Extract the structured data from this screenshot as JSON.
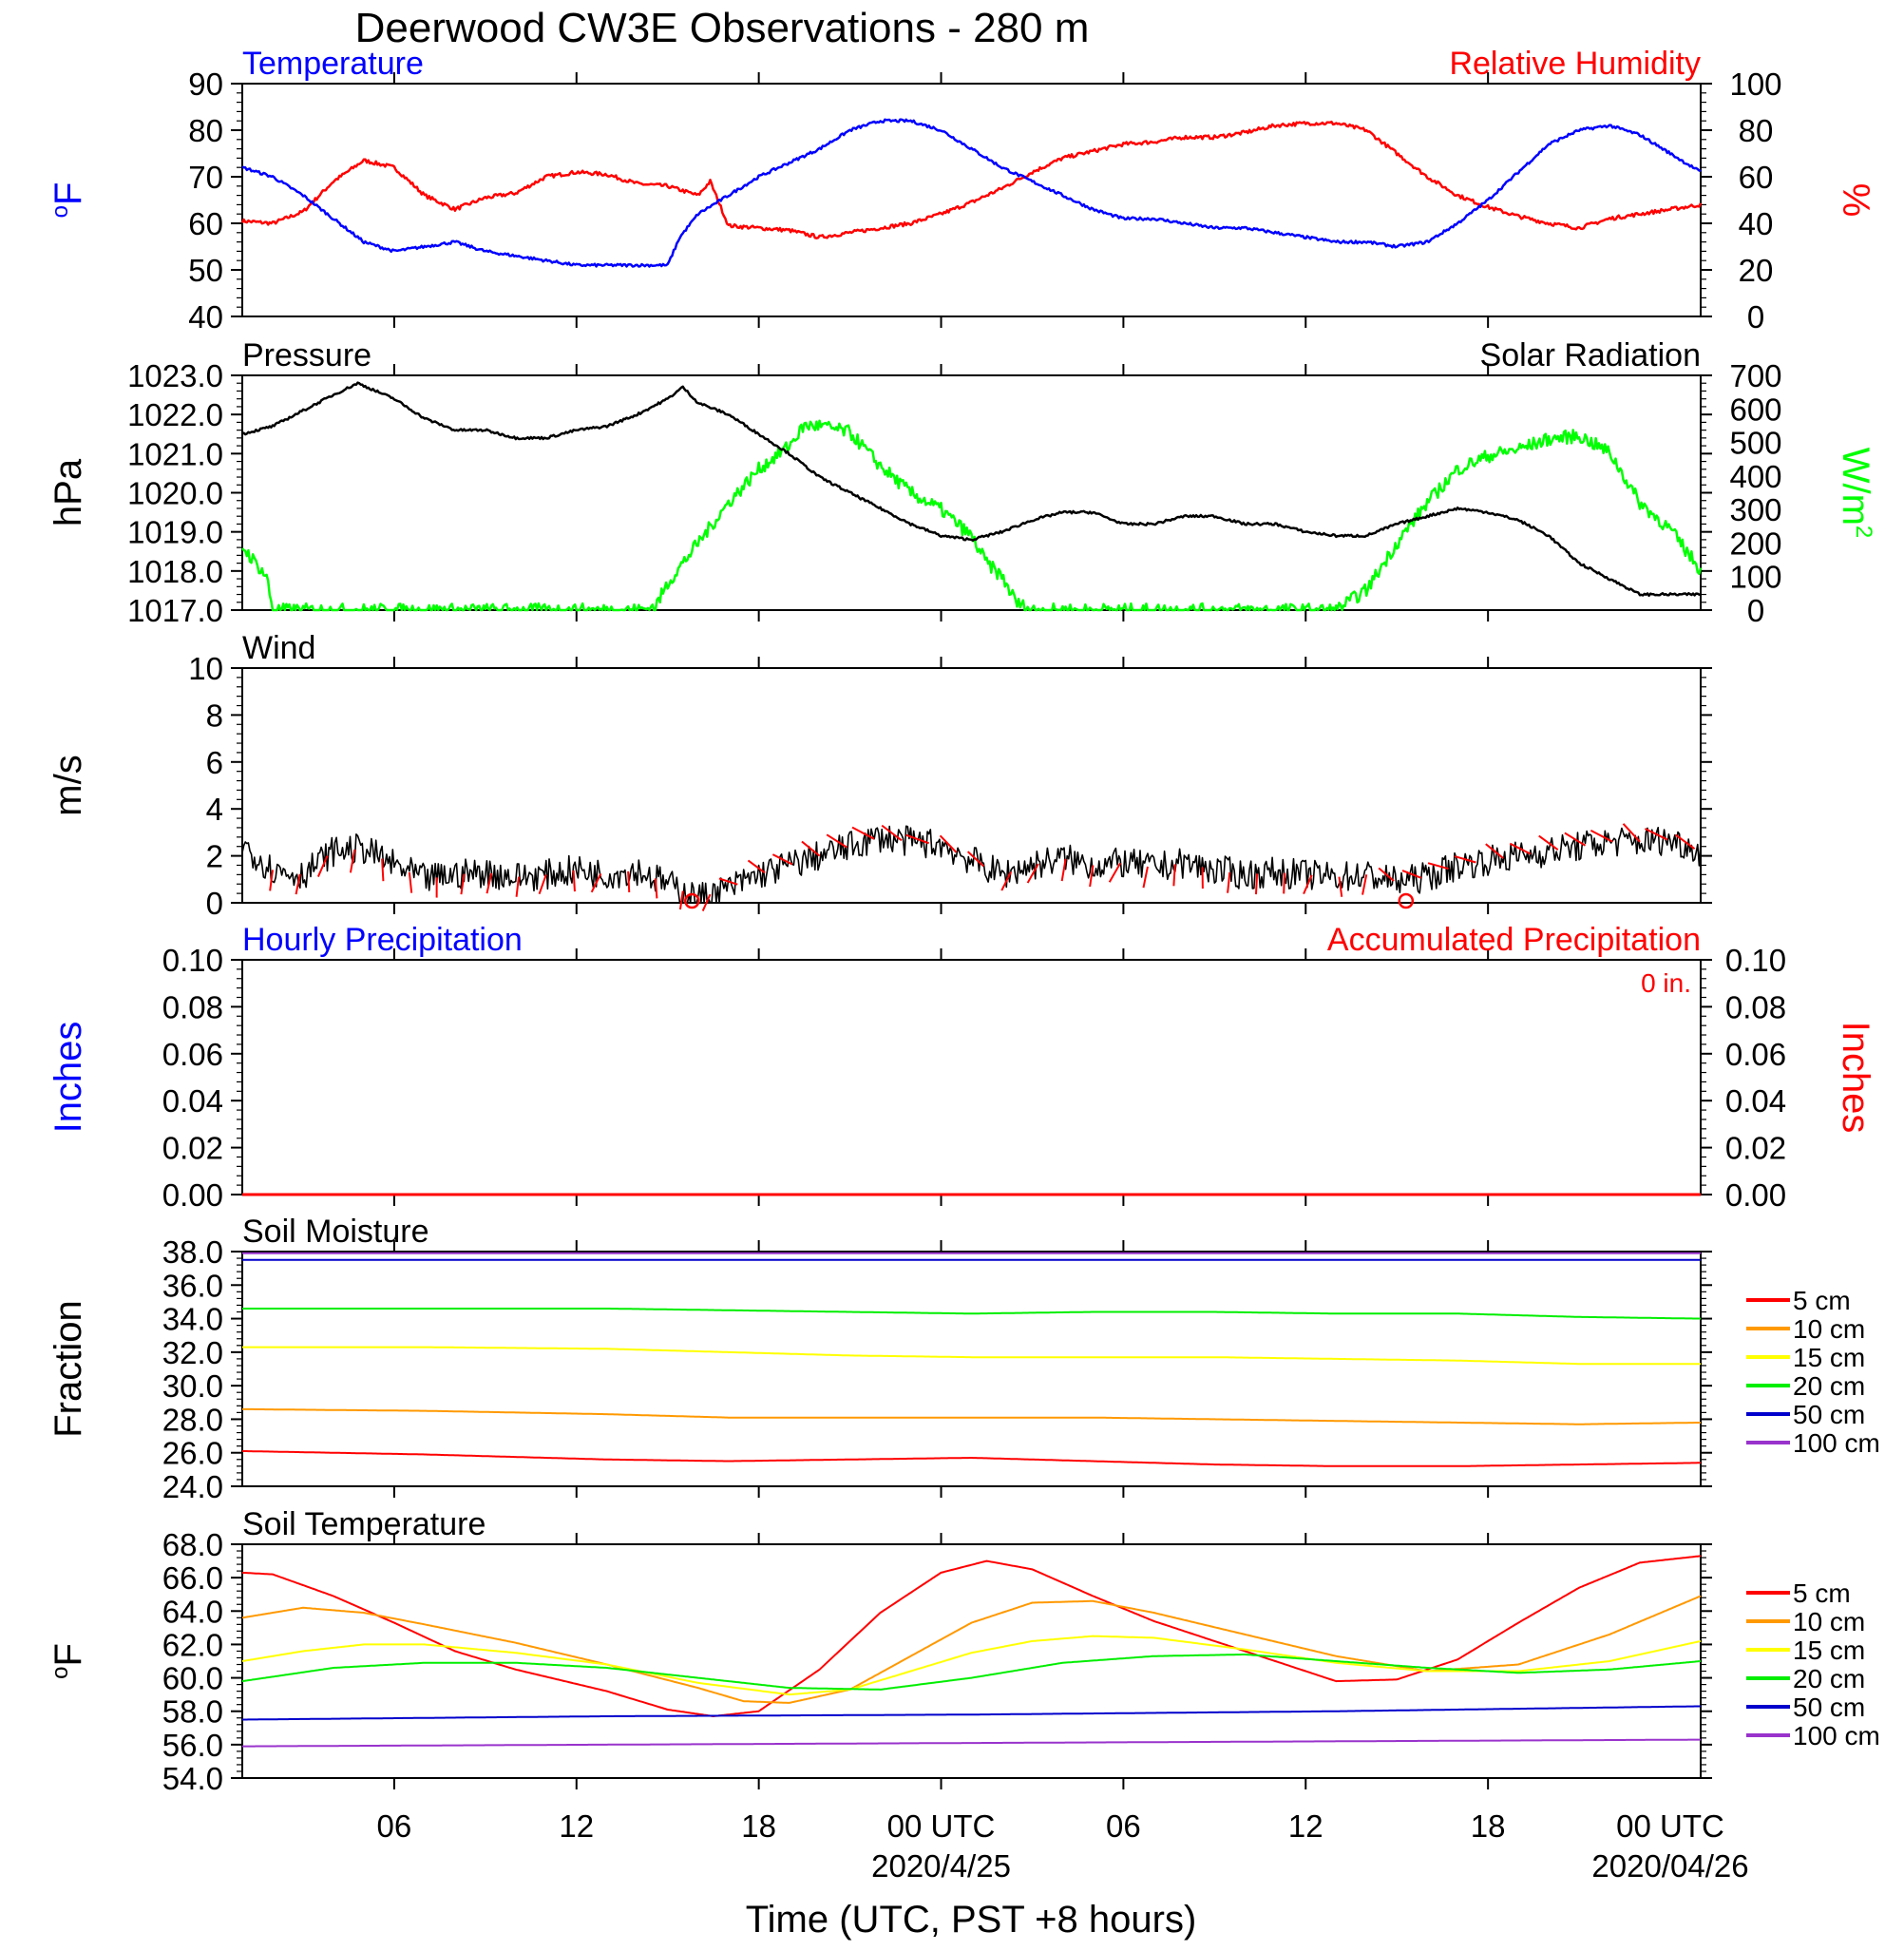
{
  "figure_title": "Deerwood CW3E Observations - 280 m",
  "x_axis": {
    "label": "Time (UTC, PST +8 hours)",
    "tick_labels": [
      "06",
      "12",
      "18",
      "00 UTC",
      "06",
      "12",
      "18",
      "00 UTC"
    ],
    "date_labels": [
      "2020/4/25",
      "2020/04/26"
    ]
  },
  "colors": {
    "temperature": "#0000ff",
    "humidity": "#ff0000",
    "pressure": "#000000",
    "solar": "#00ff00",
    "wind": "#000000",
    "barb": "#ff0000",
    "hourly": "#0000ff",
    "accum": "#ff0000",
    "d5": "#ff0000",
    "d10": "#ff9900",
    "d15": "#ffff00",
    "d20": "#00ee00",
    "d50": "#0000cc",
    "d100": "#9933cc"
  },
  "panels": {
    "temp_rh": {
      "left_title": "Temperature",
      "right_title": "Relative Humidity",
      "left_unit": "oF",
      "right_unit": "%",
      "left_ticks": [
        "90",
        "80",
        "70",
        "60",
        "50",
        "40"
      ],
      "right_ticks": [
        "100",
        "80",
        "60",
        "40",
        "20",
        "0"
      ]
    },
    "pressure_solar": {
      "left_title": "Pressure",
      "right_title": "Solar Radiation",
      "left_unit": "hPa",
      "right_unit": "W/m",
      "right_unit_sup": "2",
      "left_ticks": [
        "1023.0",
        "1022.0",
        "1021.0",
        "1020.0",
        "1019.0",
        "1018.0",
        "1017.0"
      ],
      "right_ticks": [
        "700",
        "600",
        "500",
        "400",
        "300",
        "200",
        "100",
        "0"
      ]
    },
    "wind": {
      "left_title": "Wind",
      "left_unit": "m/s",
      "left_ticks": [
        "10",
        "8",
        "6",
        "4",
        "2",
        "0"
      ]
    },
    "precip": {
      "left_title": "Hourly Precipitation",
      "right_title": "Accumulated Precipitation",
      "left_unit": "Inches",
      "right_unit": "Inches",
      "annotation": "0 in.",
      "left_ticks": [
        "0.10",
        "0.08",
        "0.06",
        "0.04",
        "0.02",
        "0.00"
      ],
      "right_ticks": [
        "0.10",
        "0.08",
        "0.06",
        "0.04",
        "0.02",
        "0.00"
      ]
    },
    "soil_moisture": {
      "left_title": "Soil Moisture",
      "left_unit": "Fraction",
      "left_ticks": [
        "38.0",
        "36.0",
        "34.0",
        "32.0",
        "30.0",
        "28.0",
        "26.0",
        "24.0"
      ],
      "legend": [
        "5 cm",
        "10 cm",
        "15 cm",
        "20 cm",
        "50 cm",
        "100 cm"
      ]
    },
    "soil_temp": {
      "left_title": "Soil Temperature",
      "left_unit": "oF",
      "left_ticks": [
        "68.0",
        "66.0",
        "64.0",
        "62.0",
        "60.0",
        "58.0",
        "56.0",
        "54.0"
      ],
      "legend": [
        "5 cm",
        "10 cm",
        "15 cm",
        "20 cm",
        "50 cm",
        "100 cm"
      ]
    }
  },
  "chart_data": [
    {
      "type": "line",
      "title": "Temperature / Relative Humidity",
      "x_unit": "hours since 2020-04-24 01 UTC (approx.)",
      "xlim": [
        0,
        48
      ],
      "series": [
        {
          "name": "Temperature",
          "axis": "left",
          "ylim": [
            40,
            90
          ],
          "x": [
            0,
            1,
            2,
            3,
            4,
            5,
            6,
            7,
            8,
            9,
            10,
            11,
            12,
            13,
            14,
            14.4,
            15,
            16,
            17,
            18,
            19,
            20,
            21,
            22,
            23,
            24,
            25,
            26,
            27,
            28,
            29,
            30,
            31,
            32,
            33,
            34,
            35,
            36,
            37,
            38,
            39,
            40,
            41,
            42,
            43,
            44,
            45,
            46,
            47,
            48
          ],
          "values": [
            72,
            70,
            66,
            61,
            56,
            54,
            55,
            56,
            54,
            53,
            52,
            51,
            51,
            51,
            51,
            57,
            62,
            66,
            70,
            73,
            76,
            80,
            82,
            82,
            80,
            76,
            72,
            69,
            66,
            63,
            61,
            61,
            60,
            59,
            59,
            58,
            57,
            56,
            56,
            55,
            56,
            60,
            65,
            71,
            77,
            80,
            81,
            79,
            75,
            71
          ]
        },
        {
          "name": "Relative Humidity",
          "axis": "right",
          "ylim": [
            0,
            100
          ],
          "x": [
            0,
            1,
            2,
            3,
            4,
            5,
            6,
            7,
            8,
            9,
            10,
            11,
            12,
            13,
            14,
            15,
            15.4,
            16,
            17,
            18,
            19,
            20,
            21,
            22,
            23,
            24,
            25,
            26,
            27,
            28,
            29,
            30,
            31,
            32,
            33,
            34,
            35,
            36,
            37,
            38,
            39,
            40,
            41,
            42,
            43,
            44,
            45,
            46,
            47,
            48
          ],
          "values": [
            41,
            40,
            45,
            58,
            67,
            64,
            52,
            46,
            51,
            53,
            60,
            62,
            61,
            57,
            56,
            52,
            58,
            39,
            38,
            37,
            34,
            36,
            38,
            40,
            44,
            49,
            55,
            62,
            68,
            71,
            74,
            75,
            77,
            77,
            79,
            82,
            83,
            83,
            80,
            70,
            60,
            52,
            47,
            43,
            40,
            38,
            42,
            44,
            46,
            48
          ]
        }
      ]
    },
    {
      "type": "line",
      "title": "Pressure / Solar Radiation",
      "xlim": [
        0,
        48
      ],
      "series": [
        {
          "name": "Pressure",
          "axis": "left",
          "ylim": [
            1017,
            1023
          ],
          "x": [
            0,
            1,
            2,
            3,
            3.8,
            5,
            6,
            7,
            8,
            9,
            10,
            11,
            12,
            13,
            14,
            14.5,
            15,
            16,
            17,
            18,
            19,
            20,
            21,
            22,
            23,
            24,
            25,
            26,
            27,
            28,
            29,
            30,
            31,
            32,
            33,
            34,
            35,
            36,
            37,
            38,
            39,
            40,
            41,
            42,
            43,
            44,
            45,
            46,
            47,
            48
          ],
          "values": [
            1021.5,
            1021.7,
            1022.1,
            1022.5,
            1022.8,
            1022.4,
            1021.9,
            1021.6,
            1021.6,
            1021.4,
            1021.4,
            1021.6,
            1021.7,
            1022.0,
            1022.4,
            1022.7,
            1022.3,
            1022.0,
            1021.5,
            1021.0,
            1020.4,
            1020.0,
            1019.6,
            1019.2,
            1018.9,
            1018.8,
            1019.0,
            1019.3,
            1019.5,
            1019.5,
            1019.2,
            1019.2,
            1019.4,
            1019.4,
            1019.2,
            1019.2,
            1019.0,
            1018.9,
            1018.9,
            1019.2,
            1019.4,
            1019.6,
            1019.5,
            1019.3,
            1018.9,
            1018.2,
            1017.8,
            1017.4,
            1017.4,
            1017.4
          ]
        },
        {
          "name": "Solar Radiation",
          "axis": "right",
          "ylim": [
            0,
            700
          ],
          "x": [
            0,
            0.8,
            1,
            13,
            13.6,
            14,
            15,
            16,
            17,
            18,
            18.5,
            19,
            20,
            20.5,
            21,
            22,
            23,
            24,
            24.5,
            25,
            25.5,
            26,
            36,
            37,
            38,
            39,
            40,
            41,
            42,
            43,
            44,
            45,
            46,
            47,
            48
          ],
          "values": [
            190,
            100,
            0,
            0,
            10,
            80,
            200,
            320,
            420,
            490,
            550,
            550,
            530,
            480,
            430,
            350,
            300,
            220,
            140,
            100,
            20,
            0,
            0,
            60,
            200,
            320,
            420,
            460,
            480,
            510,
            520,
            470,
            320,
            240,
            120
          ]
        }
      ]
    },
    {
      "type": "line",
      "title": "Wind",
      "xlim": [
        0,
        48
      ],
      "series": [
        {
          "name": "Wind speed",
          "ylim": [
            0,
            10
          ],
          "x": [
            0,
            1,
            2,
            3,
            4,
            5,
            6,
            7,
            8,
            9,
            10,
            11,
            12,
            13,
            14,
            15,
            16,
            17,
            18,
            19,
            20,
            21,
            22,
            23,
            24,
            25,
            26,
            27,
            28,
            29,
            30,
            31,
            32,
            33,
            34,
            35,
            36,
            37,
            38,
            39,
            40,
            41,
            42,
            43,
            44,
            45,
            46,
            47,
            48
          ],
          "values": [
            2.5,
            1.4,
            1.2,
            2.2,
            2.3,
            1.6,
            1.0,
            1.2,
            1.3,
            1.1,
            1.2,
            1.4,
            1.2,
            1.4,
            0.8,
            0.2,
            0.6,
            1.2,
            1.6,
            2.0,
            2.4,
            2.8,
            2.6,
            2.5,
            1.8,
            1.2,
            1.6,
            1.9,
            1.6,
            1.7,
            1.5,
            1.7,
            1.4,
            1.2,
            1.3,
            1.2,
            1.1,
            1.2,
            0.9,
            1.1,
            1.6,
            1.8,
            2.0,
            2.2,
            2.4,
            2.6,
            2.6,
            2.7,
            2.2
          ]
        }
      ]
    },
    {
      "type": "line",
      "title": "Precipitation",
      "xlim": [
        0,
        48
      ],
      "series": [
        {
          "name": "Hourly Precipitation",
          "axis": "left",
          "ylim": [
            0,
            0.1
          ],
          "x": [
            0,
            48
          ],
          "values": [
            0,
            0
          ]
        },
        {
          "name": "Accumulated Precipitation",
          "axis": "right",
          "ylim": [
            0,
            0.1
          ],
          "x": [
            0,
            48
          ],
          "values": [
            0,
            0
          ]
        }
      ]
    },
    {
      "type": "line",
      "title": "Soil Moisture",
      "xlim": [
        0,
        48
      ],
      "ylim": [
        24,
        38
      ],
      "series": [
        {
          "name": "5 cm",
          "x": [
            0,
            6,
            12,
            16,
            20,
            24,
            28,
            32,
            36,
            40,
            44,
            48
          ],
          "values": [
            26.1,
            25.9,
            25.6,
            25.5,
            25.6,
            25.7,
            25.5,
            25.3,
            25.2,
            25.2,
            25.3,
            25.4
          ]
        },
        {
          "name": "10 cm",
          "x": [
            0,
            6,
            12,
            16,
            20,
            24,
            28,
            32,
            36,
            40,
            44,
            48
          ],
          "values": [
            28.6,
            28.5,
            28.3,
            28.1,
            28.1,
            28.1,
            28.1,
            28.0,
            27.9,
            27.8,
            27.7,
            27.8
          ]
        },
        {
          "name": "15 cm",
          "x": [
            0,
            6,
            12,
            16,
            20,
            24,
            28,
            32,
            36,
            40,
            44,
            48
          ],
          "values": [
            32.3,
            32.3,
            32.2,
            32.0,
            31.8,
            31.7,
            31.7,
            31.7,
            31.6,
            31.5,
            31.3,
            31.3
          ]
        },
        {
          "name": "20 cm",
          "x": [
            0,
            6,
            12,
            16,
            20,
            24,
            28,
            32,
            36,
            40,
            44,
            48
          ],
          "values": [
            34.6,
            34.6,
            34.6,
            34.5,
            34.4,
            34.3,
            34.4,
            34.4,
            34.3,
            34.3,
            34.1,
            34.0
          ]
        },
        {
          "name": "50 cm",
          "x": [
            0,
            48
          ],
          "values": [
            37.5,
            37.5
          ]
        },
        {
          "name": "100 cm",
          "x": [
            0,
            48
          ],
          "values": [
            37.9,
            37.9
          ]
        }
      ]
    },
    {
      "type": "line",
      "title": "Soil Temperature",
      "xlim": [
        0,
        48
      ],
      "ylim": [
        54,
        68
      ],
      "series": [
        {
          "name": "5 cm",
          "x": [
            0,
            1,
            3,
            5,
            7,
            9,
            12,
            14,
            15.5,
            17,
            19,
            21,
            23,
            24.5,
            26,
            28,
            30,
            33,
            36,
            38,
            40,
            42,
            44,
            46,
            48
          ],
          "values": [
            66.3,
            66.2,
            64.9,
            63.3,
            61.6,
            60.5,
            59.2,
            58.1,
            57.7,
            58.0,
            60.5,
            63.9,
            66.3,
            67.0,
            66.5,
            64.9,
            63.4,
            61.6,
            59.8,
            59.9,
            61.1,
            63.3,
            65.4,
            66.9,
            67.3
          ]
        },
        {
          "name": "10 cm",
          "x": [
            0,
            2,
            4,
            6,
            9,
            12,
            15,
            16.5,
            18,
            20,
            22,
            24,
            26,
            28,
            30,
            33,
            36,
            39,
            42,
            45,
            48
          ],
          "values": [
            63.6,
            64.2,
            63.9,
            63.2,
            62.1,
            60.8,
            59.4,
            58.6,
            58.5,
            59.3,
            61.3,
            63.3,
            64.5,
            64.6,
            63.9,
            62.6,
            61.3,
            60.4,
            60.8,
            62.6,
            64.9
          ]
        },
        {
          "name": "15 cm",
          "x": [
            0,
            2,
            4,
            6,
            9,
            12,
            15,
            18,
            20,
            22,
            24,
            26,
            28,
            30,
            33,
            36,
            39,
            42,
            45,
            48
          ],
          "values": [
            61.0,
            61.6,
            62.0,
            62.0,
            61.5,
            60.8,
            59.7,
            59.0,
            59.3,
            60.4,
            61.5,
            62.2,
            62.5,
            62.4,
            61.7,
            60.9,
            60.4,
            60.4,
            61.0,
            62.2
          ]
        },
        {
          "name": "20 cm",
          "x": [
            0,
            3,
            6,
            9,
            12,
            15,
            18,
            21,
            24,
            27,
            30,
            33,
            36,
            39,
            42,
            45,
            48
          ],
          "values": [
            59.8,
            60.6,
            60.9,
            60.9,
            60.6,
            60.0,
            59.4,
            59.3,
            60.0,
            60.9,
            61.3,
            61.4,
            61.0,
            60.6,
            60.3,
            60.5,
            61.0
          ]
        },
        {
          "name": "50 cm",
          "x": [
            0,
            12,
            24,
            36,
            48
          ],
          "values": [
            57.5,
            57.7,
            57.8,
            58.0,
            58.3
          ]
        },
        {
          "name": "100 cm",
          "x": [
            0,
            12,
            24,
            36,
            48
          ],
          "values": [
            55.9,
            56.0,
            56.1,
            56.2,
            56.3
          ]
        }
      ]
    }
  ]
}
